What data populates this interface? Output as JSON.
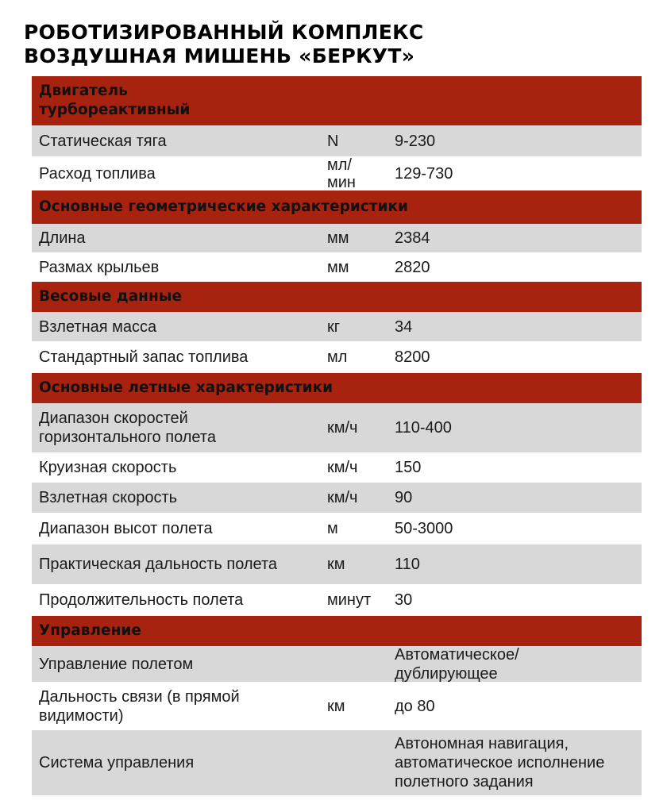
{
  "title": {
    "line1": "РОБОТИЗИРОВАННЫЙ КОМПЛЕКС",
    "line2": "ВОЗДУШНАЯ МИШЕНЬ «БЕРКУТ»"
  },
  "colors": {
    "header_bg": "#a8230f",
    "row_gray": "#d8d8d8"
  },
  "sections": [
    {
      "heading": "Двигатель\nтурбореактивный",
      "rows": [
        {
          "label": "Статическая тяга",
          "unit": "N",
          "value": "9-230"
        },
        {
          "label": "Расход топлива",
          "unit": "мл/\nмин",
          "value": "129-730"
        }
      ]
    },
    {
      "heading": "Основные геометрические характеристики",
      "rows": [
        {
          "label": "Длина",
          "unit": "мм",
          "value": "2384"
        },
        {
          "label": "Размах крыльев",
          "unit": "мм",
          "value": "2820"
        }
      ]
    },
    {
      "heading": "Весовые данные",
      "rows": [
        {
          "label": "Взлетная масса",
          "unit": "кг",
          "value": "34"
        },
        {
          "label": "Стандартный запас топлива",
          "unit": "мл",
          "value": "8200"
        }
      ]
    },
    {
      "heading": "Основные летные характеристики",
      "rows": [
        {
          "label": "Диапазон скоростей\nгоризонтального полета",
          "unit": "км/ч",
          "value": "110-400"
        },
        {
          "label": "Круизная скорость",
          "unit": "км/ч",
          "value": "150"
        },
        {
          "label": "Взлетная скорость",
          "unit": "км/ч",
          "value": "90"
        },
        {
          "label": "Диапазон высот полета",
          "unit": "м",
          "value": "50-3000"
        },
        {
          "label": "Практическая дальность полета",
          "unit": "км",
          "value": "110"
        },
        {
          "label": "Продолжительность полета",
          "unit": "минут",
          "value": "30"
        }
      ]
    },
    {
      "heading": "Управление",
      "rows": [
        {
          "label": "Управление полетом",
          "unit": "",
          "value": "Автоматическое/\nдублирующее"
        },
        {
          "label": "Дальность связи (в прямой\nвидимости)",
          "unit": "км",
          "value": "до 80"
        },
        {
          "label": "Система управления",
          "unit": "",
          "value": "Автономная навигация,\nавтоматическое исполнение\nполетного задания"
        }
      ]
    }
  ]
}
